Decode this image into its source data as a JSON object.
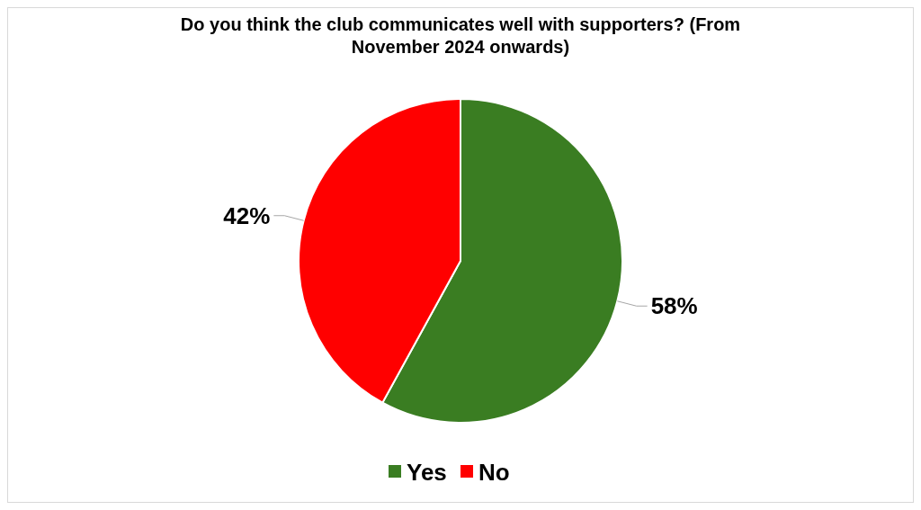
{
  "chart_data": {
    "type": "pie",
    "title": "Do you think the club communicates well with supporters? (From November 2024 onwards)",
    "categories": [
      "Yes",
      "No"
    ],
    "values": [
      58,
      42
    ],
    "colors": [
      "#3a7d22",
      "#ff0000"
    ],
    "value_labels": [
      "58%",
      "42%"
    ],
    "legend": "bottom"
  }
}
